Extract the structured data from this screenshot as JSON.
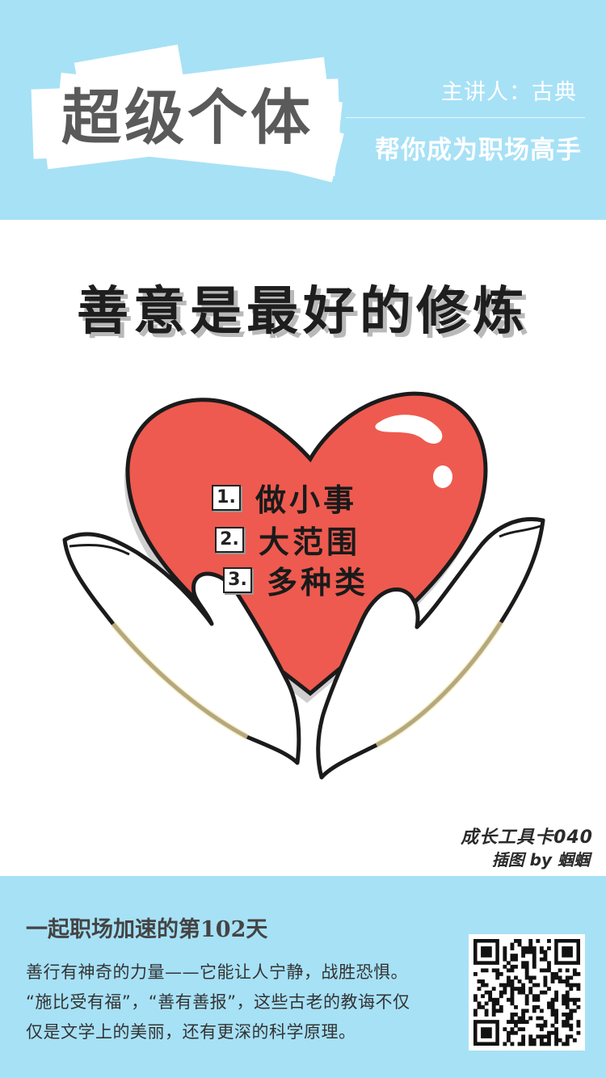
{
  "header": {
    "title": "超级个体",
    "speaker": "主讲人：古典",
    "slogan": "帮你成为职场高手",
    "background_color": "#a7e1f6"
  },
  "illustration": {
    "main_title": "善意是最好的修炼",
    "items": [
      {
        "number": "1.",
        "text": "做小事"
      },
      {
        "number": "2.",
        "text": "大范围"
      },
      {
        "number": "3.",
        "text": "多种类"
      }
    ],
    "card_number": "成长工具卡040",
    "credit": "插图 by 蝈蝈",
    "heart_color": "#ee5a4f",
    "icons": [
      "heart-icon",
      "hands-icon"
    ]
  },
  "footer": {
    "day_title": "一起职场加速的第102天",
    "body_lines": [
      "善行有神奇的力量——它能让人宁静，战胜恐惧。",
      "“施比受有福”，“善有善报”，这些古老的教诲不仅",
      "仅是文学上的美丽，还有更深的科学原理。"
    ],
    "qr_icon": "qr-code-icon"
  }
}
